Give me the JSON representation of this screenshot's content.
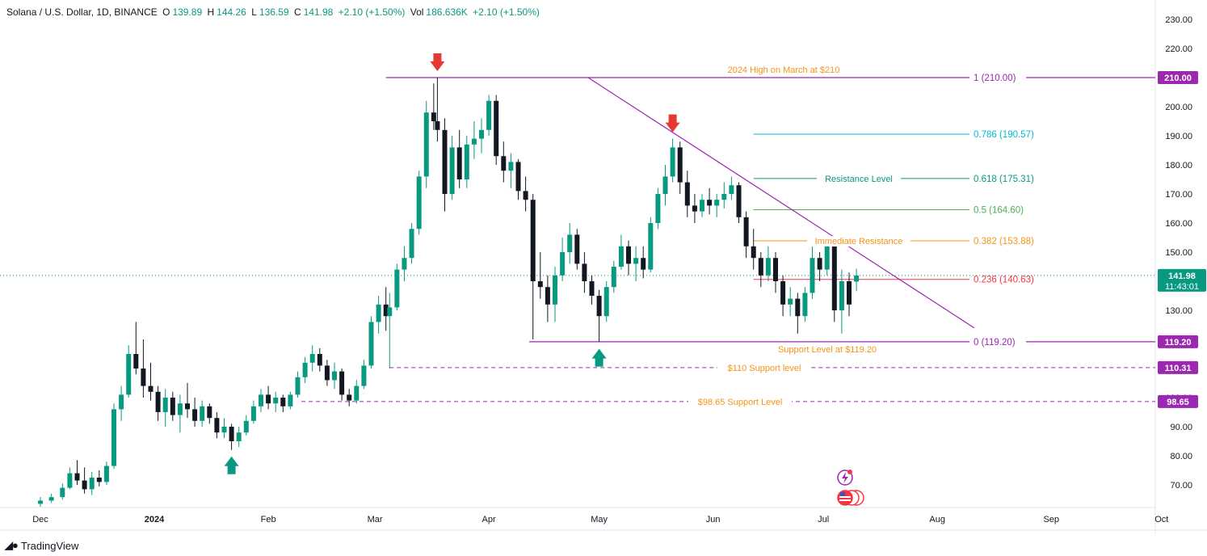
{
  "header": {
    "symbol": "Solana / U.S. Dollar, 1D, BINANCE",
    "open_label": "O",
    "open": "139.89",
    "high_label": "H",
    "high": "144.26",
    "low_label": "L",
    "low": "136.59",
    "close_label": "C",
    "close": "141.98",
    "change": "+2.10 (+1.50%)",
    "vol_label": "Vol",
    "vol": "186.636K",
    "vol_change": "+2.10 (+1.50%)"
  },
  "brand": {
    "name": "TradingView"
  },
  "colors": {
    "up": "#089981",
    "down": "#131722",
    "accent_purple": "#9c27b0",
    "orange": "#f7931a",
    "teal": "#00bcd4",
    "green": "#4caf50",
    "red": "#f23645"
  },
  "chart_data": {
    "type": "candlestick",
    "x_ticks": [
      "Dec",
      "2024",
      "Feb",
      "Mar",
      "Apr",
      "May",
      "Jun",
      "Jul",
      "Aug",
      "Sep",
      "Oct"
    ],
    "y_ticks": [
      70,
      80,
      90,
      100,
      110,
      120,
      130,
      140,
      150,
      160,
      170,
      180,
      190,
      200,
      210,
      220,
      230
    ],
    "ylim": [
      62,
      234
    ],
    "current_price": {
      "value": 141.98,
      "label": "141.98",
      "countdown": "11:43:01"
    },
    "price_labels": [
      {
        "value": 210.0,
        "label": "210.00",
        "color": "#9c27b0"
      },
      {
        "value": 119.2,
        "label": "119.20",
        "color": "#9c27b0"
      },
      {
        "value": 110.31,
        "label": "110.31",
        "color": "#9c27b0"
      },
      {
        "value": 98.65,
        "label": "98.65",
        "color": "#9c27b0"
      }
    ],
    "fib_levels": [
      {
        "ratio": "1",
        "value": 210.0,
        "label": "1 (210.00)",
        "color": "#9c27b0"
      },
      {
        "ratio": "0.786",
        "value": 190.57,
        "label": "0.786 (190.57)",
        "color": "#00bcd4"
      },
      {
        "ratio": "0.618",
        "value": 175.31,
        "label": "0.618 (175.31)",
        "color": "#089981"
      },
      {
        "ratio": "0.5",
        "value": 164.6,
        "label": "0.5 (164.60)",
        "color": "#4caf50"
      },
      {
        "ratio": "0.382",
        "value": 153.88,
        "label": "0.382 (153.88)",
        "color": "#f7931a"
      },
      {
        "ratio": "0.236",
        "value": 140.63,
        "label": "0.236 (140.63)",
        "color": "#f23645"
      },
      {
        "ratio": "0",
        "value": 119.2,
        "label": "0 (119.20)",
        "color": "#9c27b0"
      }
    ],
    "annotations": [
      {
        "text": "2024 High on March at $210",
        "value": 210.0
      },
      {
        "text": "Resistance Level",
        "value": 175.31
      },
      {
        "text": "Immediate Resistance",
        "value": 153.88
      },
      {
        "text": "Support Level at $119.20",
        "value": 119.2
      },
      {
        "text": "$110 Support level",
        "value": 110.31
      },
      {
        "text": "$98.65 Support Level",
        "value": 98.65
      }
    ],
    "trendline": {
      "from": {
        "date": "2024-04-28",
        "value": 210
      },
      "to": {
        "date": "2024-08-11",
        "value": 124
      }
    },
    "arrows": [
      {
        "date": "2024-03-18",
        "value": 210,
        "direction": "down"
      },
      {
        "date": "2024-05-21",
        "value": 189,
        "direction": "down"
      },
      {
        "date": "2024-01-22",
        "value": 82,
        "direction": "up"
      },
      {
        "date": "2024-05-01",
        "value": 119,
        "direction": "up"
      }
    ],
    "candles": [
      {
        "date": "2023-12-01",
        "o": 63.5,
        "h": 65.8,
        "l": 62.5,
        "c": 64.6
      },
      {
        "date": "2023-12-04",
        "o": 64.6,
        "h": 67.0,
        "l": 63.8,
        "c": 65.8
      },
      {
        "date": "2023-12-07",
        "o": 65.8,
        "h": 70.5,
        "l": 64.9,
        "c": 69.0
      },
      {
        "date": "2023-12-09",
        "o": 69.0,
        "h": 76.0,
        "l": 68.5,
        "c": 74.0
      },
      {
        "date": "2023-12-11",
        "o": 74.0,
        "h": 78.5,
        "l": 70.0,
        "c": 71.5
      },
      {
        "date": "2023-12-13",
        "o": 71.5,
        "h": 76.0,
        "l": 67.0,
        "c": 68.5
      },
      {
        "date": "2023-12-15",
        "o": 68.5,
        "h": 74.5,
        "l": 66.5,
        "c": 72.5
      },
      {
        "date": "2023-12-17",
        "o": 72.5,
        "h": 75.0,
        "l": 69.5,
        "c": 71.0
      },
      {
        "date": "2023-12-19",
        "o": 71.0,
        "h": 78.0,
        "l": 70.0,
        "c": 76.5
      },
      {
        "date": "2023-12-21",
        "o": 76.5,
        "h": 98.0,
        "l": 75.5,
        "c": 96.0
      },
      {
        "date": "2023-12-23",
        "o": 96.0,
        "h": 104.0,
        "l": 92.0,
        "c": 101.0
      },
      {
        "date": "2023-12-25",
        "o": 101.0,
        "h": 118.0,
        "l": 100.0,
        "c": 115.0
      },
      {
        "date": "2023-12-27",
        "o": 115.0,
        "h": 126.0,
        "l": 108.0,
        "c": 110.0
      },
      {
        "date": "2023-12-29",
        "o": 110.0,
        "h": 120.0,
        "l": 100.0,
        "c": 104.0
      },
      {
        "date": "2023-12-31",
        "o": 104.0,
        "h": 112.0,
        "l": 99.0,
        "c": 102.0
      },
      {
        "date": "2024-01-02",
        "o": 102.0,
        "h": 104.0,
        "l": 92.0,
        "c": 95.0
      },
      {
        "date": "2024-01-04",
        "o": 95.0,
        "h": 103.0,
        "l": 90.0,
        "c": 100.0
      },
      {
        "date": "2024-01-06",
        "o": 100.0,
        "h": 102.0,
        "l": 92.0,
        "c": 94.0
      },
      {
        "date": "2024-01-08",
        "o": 94.0,
        "h": 101.0,
        "l": 88.0,
        "c": 98.0
      },
      {
        "date": "2024-01-10",
        "o": 98.0,
        "h": 105.0,
        "l": 93.0,
        "c": 96.0
      },
      {
        "date": "2024-01-12",
        "o": 96.0,
        "h": 100.0,
        "l": 90.0,
        "c": 92.0
      },
      {
        "date": "2024-01-14",
        "o": 92.0,
        "h": 99.0,
        "l": 90.0,
        "c": 97.0
      },
      {
        "date": "2024-01-16",
        "o": 97.0,
        "h": 98.0,
        "l": 91.0,
        "c": 93.0
      },
      {
        "date": "2024-01-18",
        "o": 93.0,
        "h": 95.0,
        "l": 86.0,
        "c": 88.0
      },
      {
        "date": "2024-01-20",
        "o": 88.0,
        "h": 93.0,
        "l": 86.0,
        "c": 90.0
      },
      {
        "date": "2024-01-22",
        "o": 90.0,
        "h": 91.0,
        "l": 82.0,
        "c": 85.0
      },
      {
        "date": "2024-01-24",
        "o": 85.0,
        "h": 90.0,
        "l": 83.0,
        "c": 88.0
      },
      {
        "date": "2024-01-26",
        "o": 88.0,
        "h": 94.0,
        "l": 87.0,
        "c": 92.0
      },
      {
        "date": "2024-01-28",
        "o": 92.0,
        "h": 99.0,
        "l": 91.0,
        "c": 97.0
      },
      {
        "date": "2024-01-30",
        "o": 97.0,
        "h": 103.0,
        "l": 95.0,
        "c": 101.0
      },
      {
        "date": "2024-02-01",
        "o": 101.0,
        "h": 104.0,
        "l": 96.0,
        "c": 98.0
      },
      {
        "date": "2024-02-03",
        "o": 98.0,
        "h": 102.0,
        "l": 95.0,
        "c": 100.0
      },
      {
        "date": "2024-02-05",
        "o": 100.0,
        "h": 101.0,
        "l": 95.0,
        "c": 97.0
      },
      {
        "date": "2024-02-07",
        "o": 97.0,
        "h": 102.0,
        "l": 96.0,
        "c": 101.0
      },
      {
        "date": "2024-02-09",
        "o": 101.0,
        "h": 109.0,
        "l": 100.0,
        "c": 107.0
      },
      {
        "date": "2024-02-11",
        "o": 107.0,
        "h": 114.0,
        "l": 105.0,
        "c": 112.0
      },
      {
        "date": "2024-02-13",
        "o": 112.0,
        "h": 118.0,
        "l": 109.0,
        "c": 115.0
      },
      {
        "date": "2024-02-15",
        "o": 115.0,
        "h": 117.0,
        "l": 109.0,
        "c": 111.0
      },
      {
        "date": "2024-02-17",
        "o": 111.0,
        "h": 113.0,
        "l": 104.0,
        "c": 106.0
      },
      {
        "date": "2024-02-19",
        "o": 106.0,
        "h": 112.0,
        "l": 103.0,
        "c": 109.0
      },
      {
        "date": "2024-02-21",
        "o": 109.0,
        "h": 110.0,
        "l": 99.0,
        "c": 101.0
      },
      {
        "date": "2024-02-23",
        "o": 101.0,
        "h": 103.0,
        "l": 97.0,
        "c": 99.0
      },
      {
        "date": "2024-02-25",
        "o": 99.0,
        "h": 106.0,
        "l": 98.0,
        "c": 104.0
      },
      {
        "date": "2024-02-27",
        "o": 104.0,
        "h": 113.0,
        "l": 103.0,
        "c": 111.0
      },
      {
        "date": "2024-02-29",
        "o": 111.0,
        "h": 128.0,
        "l": 110.0,
        "c": 126.0
      },
      {
        "date": "2024-03-02",
        "o": 126.0,
        "h": 135.0,
        "l": 122.0,
        "c": 132.0
      },
      {
        "date": "2024-03-04",
        "o": 132.0,
        "h": 138.0,
        "l": 123.0,
        "c": 128.0
      },
      {
        "date": "2024-03-05",
        "o": 128.0,
        "h": 136.0,
        "l": 110.0,
        "c": 131.0
      },
      {
        "date": "2024-03-07",
        "o": 131.0,
        "h": 146.0,
        "l": 130.0,
        "c": 144.0
      },
      {
        "date": "2024-03-09",
        "o": 144.0,
        "h": 152.0,
        "l": 140.0,
        "c": 148.0
      },
      {
        "date": "2024-03-11",
        "o": 148.0,
        "h": 160.0,
        "l": 146.0,
        "c": 158.0
      },
      {
        "date": "2024-03-13",
        "o": 158.0,
        "h": 178.0,
        "l": 156.0,
        "c": 176.0
      },
      {
        "date": "2024-03-15",
        "o": 176.0,
        "h": 202.0,
        "l": 172.0,
        "c": 198.0
      },
      {
        "date": "2024-03-17",
        "o": 198.0,
        "h": 208.0,
        "l": 192.0,
        "c": 195.0
      },
      {
        "date": "2024-03-18",
        "o": 195.0,
        "h": 210.0,
        "l": 188.0,
        "c": 192.0
      },
      {
        "date": "2024-03-20",
        "o": 192.0,
        "h": 196.0,
        "l": 164.0,
        "c": 170.0
      },
      {
        "date": "2024-03-22",
        "o": 170.0,
        "h": 190.0,
        "l": 168.0,
        "c": 186.0
      },
      {
        "date": "2024-03-24",
        "o": 186.0,
        "h": 192.0,
        "l": 172.0,
        "c": 175.0
      },
      {
        "date": "2024-03-26",
        "o": 175.0,
        "h": 190.0,
        "l": 172.0,
        "c": 187.0
      },
      {
        "date": "2024-03-28",
        "o": 187.0,
        "h": 195.0,
        "l": 182.0,
        "c": 189.0
      },
      {
        "date": "2024-03-30",
        "o": 189.0,
        "h": 196.0,
        "l": 184.0,
        "c": 192.0
      },
      {
        "date": "2024-04-01",
        "o": 192.0,
        "h": 204.0,
        "l": 190.0,
        "c": 202.0
      },
      {
        "date": "2024-04-03",
        "o": 202.0,
        "h": 204.0,
        "l": 180.0,
        "c": 183.0
      },
      {
        "date": "2024-04-05",
        "o": 183.0,
        "h": 188.0,
        "l": 174.0,
        "c": 178.0
      },
      {
        "date": "2024-04-07",
        "o": 178.0,
        "h": 184.0,
        "l": 172.0,
        "c": 181.0
      },
      {
        "date": "2024-04-09",
        "o": 181.0,
        "h": 182.0,
        "l": 168.0,
        "c": 171.0
      },
      {
        "date": "2024-04-11",
        "o": 171.0,
        "h": 176.0,
        "l": 164.0,
        "c": 168.0
      },
      {
        "date": "2024-04-13",
        "o": 168.0,
        "h": 170.0,
        "l": 120.0,
        "c": 140.0
      },
      {
        "date": "2024-04-15",
        "o": 140.0,
        "h": 150.0,
        "l": 134.0,
        "c": 138.0
      },
      {
        "date": "2024-04-17",
        "o": 138.0,
        "h": 142.0,
        "l": 126.0,
        "c": 132.0
      },
      {
        "date": "2024-04-19",
        "o": 132.0,
        "h": 145.0,
        "l": 126.0,
        "c": 142.0
      },
      {
        "date": "2024-04-21",
        "o": 142.0,
        "h": 155.0,
        "l": 140.0,
        "c": 150.0
      },
      {
        "date": "2024-04-23",
        "o": 150.0,
        "h": 160.0,
        "l": 146.0,
        "c": 156.0
      },
      {
        "date": "2024-04-25",
        "o": 156.0,
        "h": 158.0,
        "l": 144.0,
        "c": 146.0
      },
      {
        "date": "2024-04-27",
        "o": 146.0,
        "h": 150.0,
        "l": 136.0,
        "c": 140.0
      },
      {
        "date": "2024-04-29",
        "o": 140.0,
        "h": 142.0,
        "l": 132.0,
        "c": 135.0
      },
      {
        "date": "2024-05-01",
        "o": 135.0,
        "h": 137.0,
        "l": 119.2,
        "c": 128.0
      },
      {
        "date": "2024-05-03",
        "o": 128.0,
        "h": 140.0,
        "l": 126.0,
        "c": 138.0
      },
      {
        "date": "2024-05-05",
        "o": 138.0,
        "h": 147.0,
        "l": 136.0,
        "c": 145.0
      },
      {
        "date": "2024-05-07",
        "o": 145.0,
        "h": 156.0,
        "l": 144.0,
        "c": 152.0
      },
      {
        "date": "2024-05-09",
        "o": 152.0,
        "h": 154.0,
        "l": 142.0,
        "c": 146.0
      },
      {
        "date": "2024-05-11",
        "o": 146.0,
        "h": 152.0,
        "l": 140.0,
        "c": 148.0
      },
      {
        "date": "2024-05-13",
        "o": 148.0,
        "h": 152.0,
        "l": 141.0,
        "c": 144.0
      },
      {
        "date": "2024-05-15",
        "o": 144.0,
        "h": 162.0,
        "l": 143.0,
        "c": 160.0
      },
      {
        "date": "2024-05-17",
        "o": 160.0,
        "h": 172.0,
        "l": 158.0,
        "c": 170.0
      },
      {
        "date": "2024-05-19",
        "o": 170.0,
        "h": 180.0,
        "l": 166.0,
        "c": 176.0
      },
      {
        "date": "2024-05-21",
        "o": 176.0,
        "h": 189.0,
        "l": 174.0,
        "c": 186.0
      },
      {
        "date": "2024-05-23",
        "o": 186.0,
        "h": 188.0,
        "l": 170.0,
        "c": 174.0
      },
      {
        "date": "2024-05-25",
        "o": 174.0,
        "h": 178.0,
        "l": 162.0,
        "c": 166.0
      },
      {
        "date": "2024-05-27",
        "o": 166.0,
        "h": 170.0,
        "l": 160.0,
        "c": 164.0
      },
      {
        "date": "2024-05-29",
        "o": 164.0,
        "h": 170.0,
        "l": 162.0,
        "c": 168.0
      },
      {
        "date": "2024-05-31",
        "o": 168.0,
        "h": 172.0,
        "l": 163.0,
        "c": 166.0
      },
      {
        "date": "2024-06-02",
        "o": 166.0,
        "h": 170.0,
        "l": 162.0,
        "c": 168.0
      },
      {
        "date": "2024-06-04",
        "o": 168.0,
        "h": 174.0,
        "l": 165.0,
        "c": 170.0
      },
      {
        "date": "2024-06-06",
        "o": 170.0,
        "h": 176.0,
        "l": 168.0,
        "c": 173.0
      },
      {
        "date": "2024-06-08",
        "o": 173.0,
        "h": 174.0,
        "l": 160.0,
        "c": 162.0
      },
      {
        "date": "2024-06-10",
        "o": 162.0,
        "h": 164.0,
        "l": 148.0,
        "c": 152.0
      },
      {
        "date": "2024-06-12",
        "o": 152.0,
        "h": 158.0,
        "l": 144.0,
        "c": 148.0
      },
      {
        "date": "2024-06-14",
        "o": 148.0,
        "h": 150.0,
        "l": 138.0,
        "c": 142.0
      },
      {
        "date": "2024-06-16",
        "o": 142.0,
        "h": 152.0,
        "l": 140.0,
        "c": 148.0
      },
      {
        "date": "2024-06-18",
        "o": 148.0,
        "h": 150.0,
        "l": 136.0,
        "c": 140.0
      },
      {
        "date": "2024-06-20",
        "o": 140.0,
        "h": 142.0,
        "l": 128.0,
        "c": 132.0
      },
      {
        "date": "2024-06-22",
        "o": 132.0,
        "h": 138.0,
        "l": 128.0,
        "c": 134.0
      },
      {
        "date": "2024-06-24",
        "o": 134.0,
        "h": 136.0,
        "l": 122.0,
        "c": 128.0
      },
      {
        "date": "2024-06-26",
        "o": 128.0,
        "h": 138.0,
        "l": 126.0,
        "c": 136.0
      },
      {
        "date": "2024-06-28",
        "o": 136.0,
        "h": 152.0,
        "l": 134.0,
        "c": 148.0
      },
      {
        "date": "2024-06-30",
        "o": 148.0,
        "h": 150.0,
        "l": 140.0,
        "c": 144.0
      },
      {
        "date": "2024-07-02",
        "o": 144.0,
        "h": 155.0,
        "l": 142.0,
        "c": 152.0
      },
      {
        "date": "2024-07-04",
        "o": 152.0,
        "h": 154.0,
        "l": 126.0,
        "c": 130.0
      },
      {
        "date": "2024-07-06",
        "o": 130.0,
        "h": 144.0,
        "l": 122.0,
        "c": 140.0
      },
      {
        "date": "2024-07-08",
        "o": 140.0,
        "h": 143.0,
        "l": 128.0,
        "c": 132.0
      },
      {
        "date": "2024-07-10",
        "o": 139.89,
        "h": 144.26,
        "l": 136.59,
        "c": 141.98
      }
    ]
  }
}
